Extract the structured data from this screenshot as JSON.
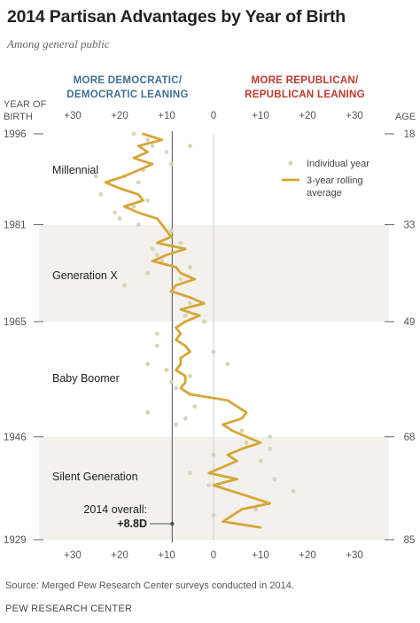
{
  "title": "2014 Partisan Advantages by Year of Birth",
  "subtitle": "Among general public",
  "header": {
    "dem_line1": "MORE DEMOCRATIC/",
    "dem_line2": "DEMOCRATIC LEANING",
    "rep_line1": "MORE REPUBLICAN/",
    "rep_line2": "REPUBLICAN LEANING",
    "year_label_1": "YEAR OF",
    "year_label_2": "BIRTH",
    "age_label": "AGE"
  },
  "source": "Source: Merged Pew Research Center surveys conducted in 2014.",
  "org": "PEW RESEARCH CENTER",
  "colors": {
    "line": "#d6a637",
    "dots": "#d8d2b8",
    "band": "#f2f1ed",
    "dem": "#3f6f8f",
    "rep": "#c0392b"
  },
  "chart_data": {
    "type": "line",
    "x_axis": {
      "label": "",
      "range": [
        -35,
        35
      ],
      "ticks": [
        -30,
        -20,
        -10,
        0,
        10,
        20,
        30
      ],
      "tick_labels": [
        "+30",
        "+20",
        "+10",
        "0",
        "+10",
        "+20",
        "+30"
      ]
    },
    "y_axis": {
      "label": "YEAR OF BIRTH",
      "range": [
        1929,
        1996
      ],
      "year_ticks": [
        1996,
        1981,
        1965,
        1946,
        1929
      ],
      "age_ticks": [
        18,
        33,
        49,
        68,
        85
      ]
    },
    "reference_line": {
      "value": -8.8,
      "label_line1": "2014 overall:",
      "label_line2": "+8.8D"
    },
    "generations": [
      {
        "name": "Millennial",
        "from": 1981,
        "to": 1996,
        "shaded": false
      },
      {
        "name": "Generation X",
        "from": 1965,
        "to": 1981,
        "shaded": true
      },
      {
        "name": "Baby Boomer",
        "from": 1946,
        "to": 1965,
        "shaded": false
      },
      {
        "name": "Silent Generation",
        "from": 1929,
        "to": 1946,
        "shaded": true
      }
    ],
    "legend": {
      "position": "top-right",
      "dots_label": "Individual year",
      "line_label_1": "3-year rolling",
      "line_label_2": "average"
    },
    "series": [
      {
        "name": "3-year rolling average",
        "x": [
          -15,
          -11,
          -16,
          -14,
          -17,
          -13,
          -16,
          -19,
          -23,
          -20,
          -16,
          -15,
          -19,
          -16,
          -12,
          -11,
          -10,
          -9,
          -12,
          -6,
          -10,
          -13,
          -8,
          -7,
          -4,
          -8,
          -9,
          -5,
          -2,
          -7,
          -3,
          -6,
          -8,
          -7,
          -8,
          -6,
          -5,
          -7,
          -7,
          -8,
          -6,
          -6,
          -7,
          -5,
          3,
          5,
          7,
          6,
          2,
          4,
          7,
          10,
          6,
          3,
          5,
          2,
          -1,
          5,
          0,
          4,
          8,
          12,
          6,
          4,
          2,
          10
        ],
        "y": [
          1996,
          1995,
          1994,
          1993,
          1992,
          1991,
          1990,
          1989,
          1988,
          1987,
          1986,
          1985,
          1984,
          1983,
          1982,
          1981,
          1980,
          1979,
          1978,
          1977,
          1976,
          1975,
          1974,
          1973,
          1972,
          1971,
          1970,
          1969,
          1968,
          1967,
          1966,
          1965,
          1964,
          1963,
          1962,
          1961,
          1960,
          1959,
          1958,
          1957,
          1956,
          1955,
          1954,
          1953,
          1952,
          1951,
          1950,
          1949,
          1948,
          1947,
          1946,
          1945,
          1944,
          1943,
          1942,
          1941,
          1940,
          1939,
          1938,
          1937,
          1936,
          1935,
          1934,
          1933,
          1932,
          1931
        ]
      },
      {
        "name": "Individual year",
        "points": [
          [
            -17,
            1996
          ],
          [
            -14,
            1995
          ],
          [
            -5,
            1994
          ],
          [
            -13,
            1994
          ],
          [
            -10,
            1993
          ],
          [
            -9,
            1991
          ],
          [
            -15,
            1990
          ],
          [
            -19,
            1989
          ],
          [
            -25,
            1989
          ],
          [
            -16,
            1988
          ],
          [
            -24,
            1986
          ],
          [
            -14,
            1985
          ],
          [
            -17,
            1984
          ],
          [
            -21,
            1983
          ],
          [
            -20,
            1982
          ],
          [
            -16,
            1981
          ],
          [
            -9,
            1980
          ],
          [
            -7,
            1978
          ],
          [
            -13,
            1977
          ],
          [
            -12,
            1976
          ],
          [
            -11,
            1975
          ],
          [
            -5,
            1974
          ],
          [
            -14,
            1973
          ],
          [
            -7,
            1972
          ],
          [
            -19,
            1971
          ],
          [
            -9,
            1970
          ],
          [
            -5,
            1968
          ],
          [
            -6,
            1966
          ],
          [
            -2,
            1965
          ],
          [
            -12,
            1963
          ],
          [
            -12,
            1961
          ],
          [
            0,
            1960
          ],
          [
            -14,
            1958
          ],
          [
            3,
            1958
          ],
          [
            -10,
            1957
          ],
          [
            -5,
            1956
          ],
          [
            -9,
            1955
          ],
          [
            -8,
            1954
          ],
          [
            -5,
            1953
          ],
          [
            -4,
            1951
          ],
          [
            -14,
            1950
          ],
          [
            -6,
            1949
          ],
          [
            -8,
            1948
          ],
          [
            6,
            1947
          ],
          [
            12,
            1946
          ],
          [
            7,
            1945
          ],
          [
            12,
            1944
          ],
          [
            0,
            1943
          ],
          [
            10,
            1942
          ],
          [
            -5,
            1940
          ],
          [
            13,
            1939
          ],
          [
            -1,
            1938
          ],
          [
            17,
            1937
          ],
          [
            9,
            1934
          ],
          [
            0,
            1933
          ]
        ]
      }
    ]
  }
}
